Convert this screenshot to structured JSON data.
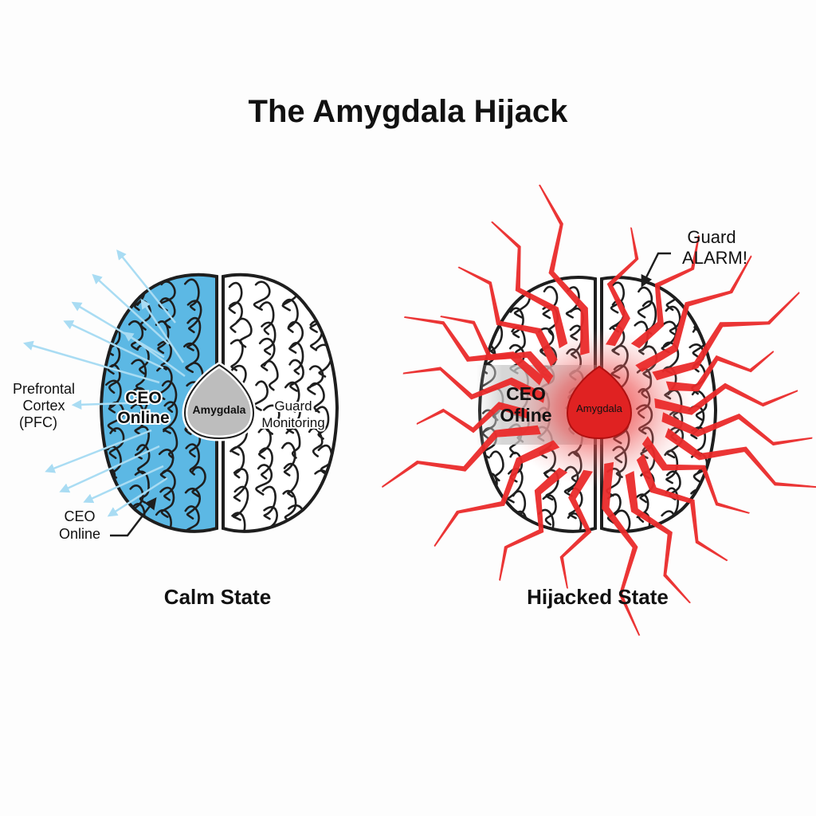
{
  "title": "The Amygdala Hijack",
  "calm": {
    "state_label": "Calm State",
    "ceo_label_line1": "CEO",
    "ceo_label_line2": "Online",
    "amygdala_label": "Amygdala",
    "guard_line1": "Guard",
    "guard_line2": "Monitoring",
    "pfc_line1": "Prefrontal",
    "pfc_line2": "Cortex",
    "pfc_line3": "(PFC)",
    "callout_line1": "CEO",
    "callout_line2": "Online"
  },
  "hijacked": {
    "state_label": "Hijacked State",
    "ceo_label_line1": "CEO",
    "ceo_label_line2": "Ofline",
    "amygdala_label": "Amygdala",
    "alarm_line1": "Guard",
    "alarm_line2": "ALARM!"
  },
  "colors": {
    "pfc_blue": "#5cb8e4",
    "arrow_blue": "#a9dcf3",
    "alarm_red": "#ea2a2a",
    "amygdala_gray": "#bdbdbd",
    "outline": "#1e1e1e"
  }
}
